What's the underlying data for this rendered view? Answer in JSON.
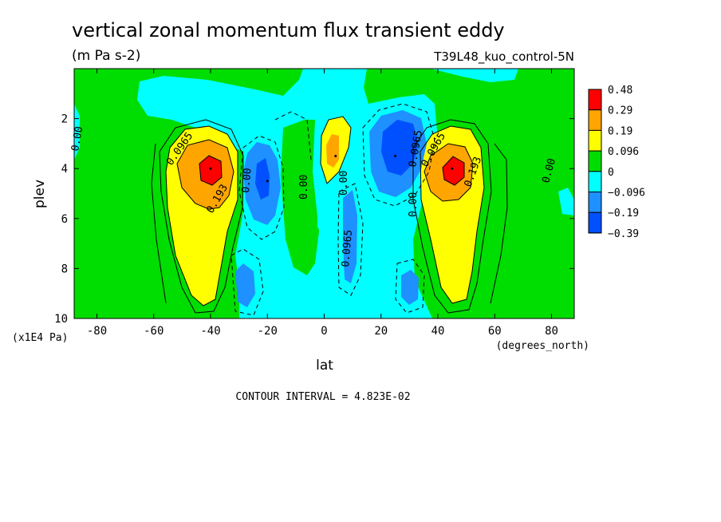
{
  "chart_data": {
    "type": "heatmap",
    "title": "vertical zonal momentum flux transient eddy",
    "units": "(m Pa s-2)",
    "dataset": "T39L48_kuo_control-5N",
    "xlabel": "lat",
    "x_units": "(degrees_north)",
    "ylabel": "plev",
    "y_units": "(x1E4 Pa)",
    "xlim": [
      -88,
      88
    ],
    "ylim": [
      10,
      0
    ],
    "x_ticks": [
      -80,
      -60,
      -40,
      -20,
      0,
      20,
      40,
      60,
      80
    ],
    "y_ticks": [
      2,
      4,
      6,
      8,
      10
    ],
    "contour_interval": "CONTOUR INTERVAL = 4.823E-02",
    "legend": {
      "placement": "right",
      "levels": [
        "0.48",
        "0.29",
        "0.19",
        "0.096",
        "0",
        "−0.096",
        "−0.19",
        "−0.39"
      ],
      "colors": [
        "#ff0000",
        "#ffa500",
        "#ffff00",
        "#00dd00",
        "#00ffff",
        "#1e90ff",
        "#0050ff"
      ]
    },
    "contour_labels": [
      "0.0965",
      "0.193",
      "0.00",
      "0.00",
      "0.00",
      "0.00",
      "0.0965",
      "0.0965",
      "0.00",
      "0.0965",
      "0.193",
      "0.00",
      "0.00"
    ],
    "features": [
      {
        "lat": -40,
        "plev": 4.0,
        "value": 0.45,
        "sign": "positive max"
      },
      {
        "lat": 45,
        "plev": 4.0,
        "value": 0.42,
        "sign": "positive max"
      },
      {
        "lat": 25,
        "plev": 3.5,
        "value": -0.25,
        "sign": "negative min"
      },
      {
        "lat": -20,
        "plev": 4.5,
        "value": -0.2,
        "sign": "negative min"
      },
      {
        "lat": 4,
        "plev": 3.5,
        "value": 0.19,
        "sign": "positive max"
      }
    ]
  }
}
